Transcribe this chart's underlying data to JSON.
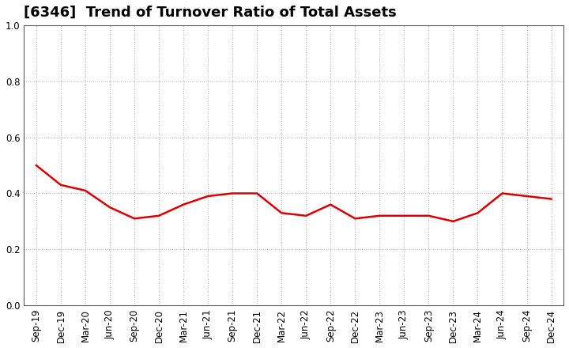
{
  "title": "[6346]  Trend of Turnover Ratio of Total Assets",
  "labels": [
    "Sep-19",
    "Dec-19",
    "Mar-20",
    "Jun-20",
    "Sep-20",
    "Dec-20",
    "Mar-21",
    "Jun-21",
    "Sep-21",
    "Dec-21",
    "Mar-22",
    "Jun-22",
    "Sep-22",
    "Dec-22",
    "Mar-23",
    "Jun-23",
    "Sep-23",
    "Dec-23",
    "Mar-24",
    "Jun-24",
    "Sep-24",
    "Dec-24"
  ],
  "values": [
    0.5,
    0.43,
    0.41,
    0.35,
    0.31,
    0.32,
    0.36,
    0.39,
    0.4,
    0.4,
    0.33,
    0.32,
    0.36,
    0.31,
    0.32,
    0.32,
    0.32,
    0.3,
    0.33,
    0.4,
    0.39,
    0.38
  ],
  "line_color": "#dd0000",
  "line_width": 1.8,
  "ylim": [
    0.0,
    1.0
  ],
  "yticks": [
    0.0,
    0.2,
    0.4,
    0.6,
    0.8,
    1.0
  ],
  "grid_color": "#999999",
  "background_color": "#ffffff",
  "title_fontsize": 13,
  "tick_fontsize": 8.5,
  "title_color": "#000000",
  "title_fontweight": "bold"
}
